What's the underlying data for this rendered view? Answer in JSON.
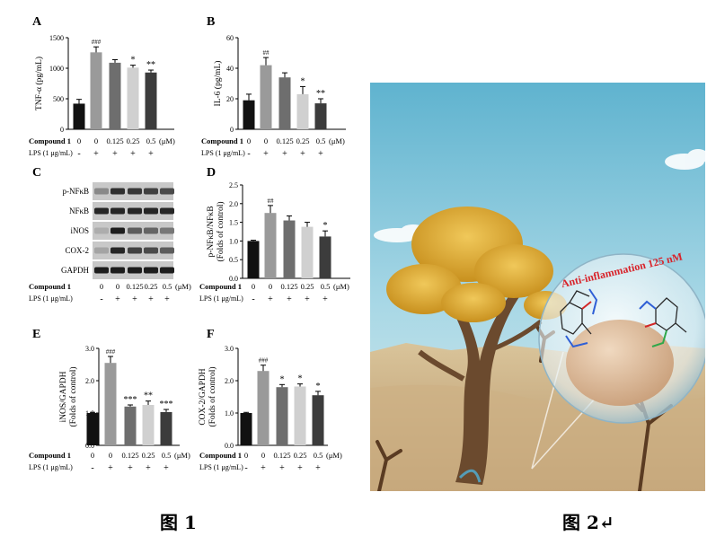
{
  "colors": {
    "bar_fills": [
      "#111111",
      "#9a9a9a",
      "#6e6e6e",
      "#d0d0d0",
      "#3c3c3c"
    ]
  },
  "captions": {
    "fig1": "图 1",
    "fig2": "图 2↵"
  },
  "compound_row": {
    "label": "Compound 1",
    "values": [
      "0",
      "0",
      "0.125",
      "0.25",
      "0.5"
    ],
    "unit": "(μM)"
  },
  "lps_row": {
    "label": "LPS (1 μg/mL)",
    "values": [
      "-",
      "+",
      "+",
      "+",
      "+"
    ]
  },
  "chart_data": [
    {
      "panel": "A",
      "type": "bar",
      "ylabel": "TNF-α (pg/mL)",
      "ylim": [
        0,
        1500
      ],
      "yticks": [
        "0",
        "500",
        "1000",
        "1500"
      ],
      "ytick_values": [
        0,
        500,
        1000,
        1500
      ],
      "values": [
        420,
        1260,
        1090,
        1010,
        930
      ],
      "errors": [
        70,
        90,
        50,
        40,
        40
      ],
      "marks": [
        "",
        "###",
        "",
        "*",
        "**"
      ]
    },
    {
      "panel": "B",
      "type": "bar",
      "ylabel": "IL-6 (pg/mL)",
      "ylim": [
        0,
        60
      ],
      "yticks": [
        "0",
        "20",
        "40",
        "60"
      ],
      "ytick_values": [
        0,
        20,
        40,
        60
      ],
      "values": [
        19,
        42,
        34,
        23,
        17
      ],
      "errors": [
        4,
        5,
        3,
        5,
        3
      ],
      "marks": [
        "",
        "##",
        "",
        "*",
        "**"
      ]
    },
    {
      "panel": "D",
      "type": "bar",
      "ylabel": "p-NFκB/NFκB (Folds of control)",
      "ylabel_lines": [
        "p-NFκB/NFκB",
        "(Folds of control)"
      ],
      "ylim": [
        0,
        2.5
      ],
      "yticks": [
        "0.0",
        "0.5",
        "1.0",
        "1.5",
        "2.0",
        "2.5"
      ],
      "ytick_values": [
        0,
        0.5,
        1,
        1.5,
        2,
        2.5
      ],
      "values": [
        1.0,
        1.75,
        1.55,
        1.38,
        1.12
      ],
      "errors": [
        0.02,
        0.2,
        0.12,
        0.12,
        0.15
      ],
      "marks": [
        "",
        "##",
        "",
        "",
        "*"
      ]
    },
    {
      "panel": "E",
      "type": "bar",
      "ylabel": "iNOS/GAPDH (Folds of control)",
      "ylabel_lines": [
        "iNOS/GAPDH",
        "(Folds of control)"
      ],
      "ylim": [
        0,
        3.0
      ],
      "yticks": [
        "0.0",
        "1.0",
        "2.0",
        "3.0"
      ],
      "ytick_values": [
        0,
        1,
        2,
        3
      ],
      "values": [
        1.0,
        2.55,
        1.2,
        1.25,
        1.03
      ],
      "errors": [
        0.02,
        0.2,
        0.05,
        0.12,
        0.08
      ],
      "marks": [
        "",
        "###",
        "***",
        "**",
        "***"
      ]
    },
    {
      "panel": "F",
      "type": "bar",
      "ylabel": "COX-2/GAPDH (Folds of control)",
      "ylabel_lines": [
        "COX-2/GAPDH",
        "(Folds of control)"
      ],
      "ylim": [
        0,
        3.0
      ],
      "yticks": [
        "0.0",
        "1.0",
        "2.0",
        "3.0"
      ],
      "ytick_values": [
        0,
        1,
        2,
        3
      ],
      "values": [
        1.0,
        2.3,
        1.8,
        1.82,
        1.55
      ],
      "errors": [
        0.02,
        0.18,
        0.08,
        0.08,
        0.12
      ],
      "marks": [
        "",
        "###",
        "*",
        "*",
        "*"
      ]
    }
  ],
  "western_blot": {
    "panel": "C",
    "rows": [
      {
        "label": "p-NFκB",
        "intensities": [
          0.35,
          0.85,
          0.8,
          0.75,
          0.7
        ]
      },
      {
        "label": "NFκB",
        "intensities": [
          0.9,
          0.9,
          0.9,
          0.9,
          0.9
        ]
      },
      {
        "label": "iNOS",
        "intensities": [
          0.15,
          0.95,
          0.6,
          0.55,
          0.45
        ]
      },
      {
        "label": "COX-2",
        "intensities": [
          0.2,
          0.9,
          0.75,
          0.7,
          0.6
        ]
      },
      {
        "label": "GAPDH",
        "intensities": [
          0.95,
          0.95,
          0.95,
          0.95,
          0.95
        ]
      }
    ]
  },
  "illustration": {
    "annotation": "Anti-inflammation 125 nM"
  }
}
